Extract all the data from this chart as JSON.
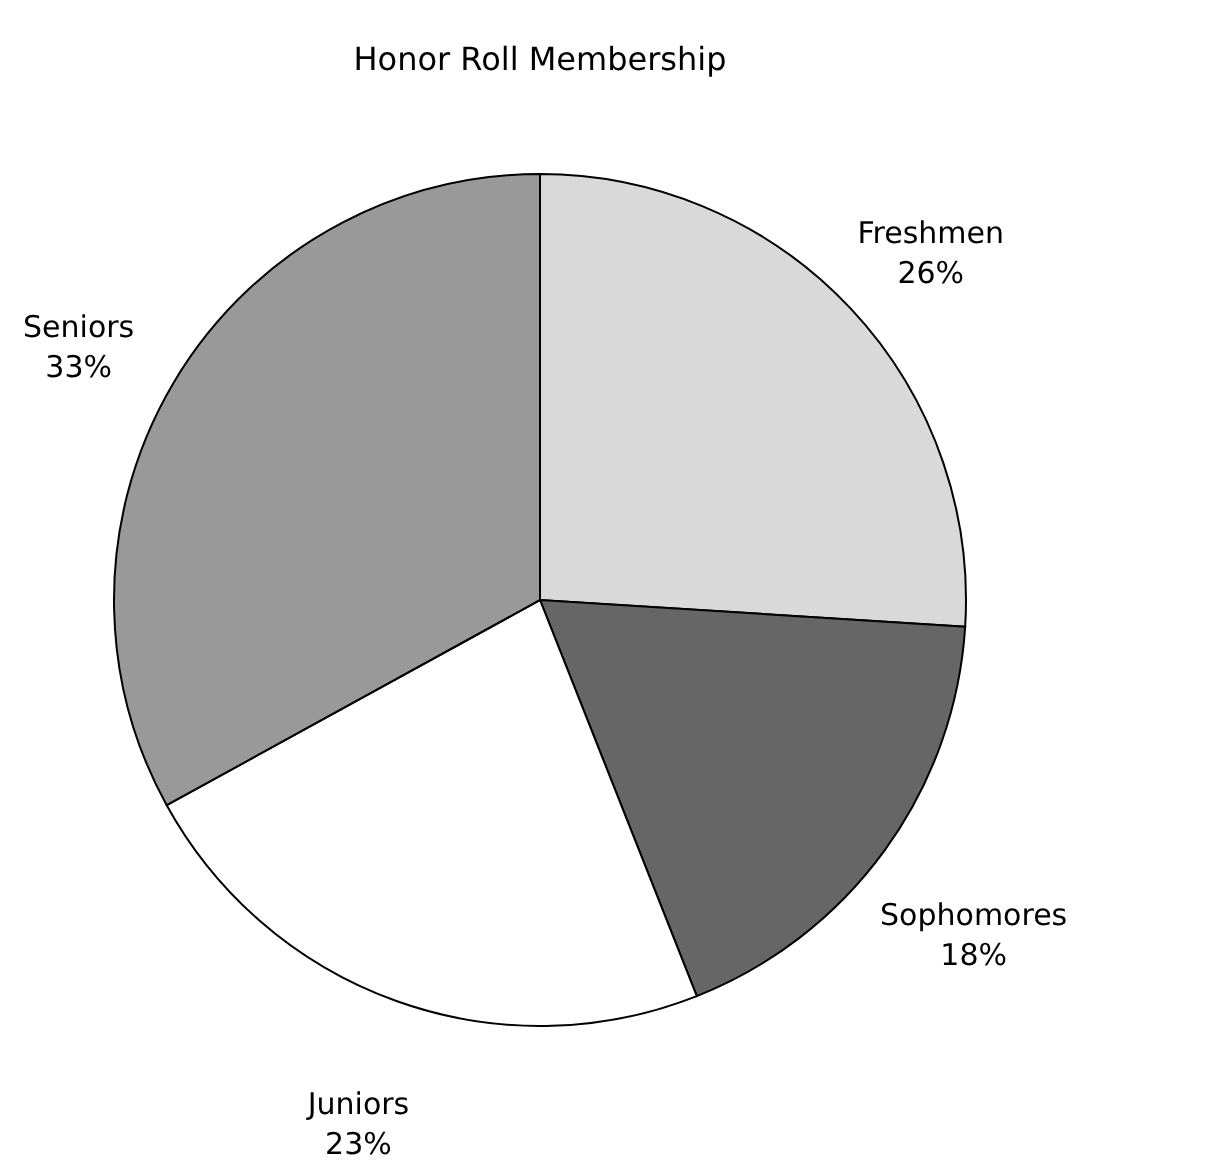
{
  "chart_data": {
    "type": "pie",
    "title": "Honor Roll Membership",
    "categories": [
      "Freshmen",
      "Sophomores",
      "Juniors",
      "Seniors"
    ],
    "values": [
      26,
      18,
      23,
      33
    ],
    "colors": [
      "#d9d9d9",
      "#666666",
      "#ffffff",
      "#999999"
    ],
    "value_labels": [
      "26%",
      "18%",
      "23%",
      "33%"
    ],
    "legend": false
  }
}
